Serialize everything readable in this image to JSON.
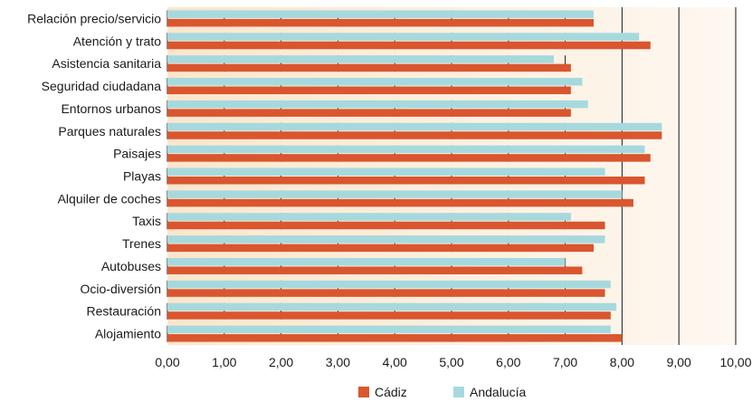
{
  "chart_data": {
    "type": "bar",
    "orientation": "horizontal",
    "categories": [
      "Relación precio/servicio",
      "Atención y trato",
      "Asistencia sanitaria",
      "Seguridad ciudadana",
      "Entornos urbanos",
      "Parques naturales",
      "Paisajes",
      "Playas",
      "Alquiler de coches",
      "Taxis",
      "Trenes",
      "Autobuses",
      "Ocio-diversión",
      "Restauración",
      "Alojamiento"
    ],
    "series": [
      {
        "name": "Andalucía",
        "color": "#a6d9de",
        "values": [
          7.5,
          8.3,
          6.8,
          7.3,
          7.4,
          8.7,
          8.4,
          7.7,
          8.0,
          7.1,
          7.7,
          7.0,
          7.8,
          7.9,
          7.8
        ]
      },
      {
        "name": "Cádiz",
        "color": "#d9562f",
        "values": [
          7.5,
          8.5,
          7.1,
          7.1,
          7.1,
          8.7,
          8.5,
          8.4,
          8.2,
          7.7,
          7.5,
          7.3,
          7.7,
          7.8,
          8.0
        ]
      }
    ],
    "xlim": [
      0,
      10
    ],
    "xticks": [
      "0,00",
      "1,00",
      "2,00",
      "3,00",
      "4,00",
      "5,00",
      "6,00",
      "7,00",
      "8,00",
      "9,00",
      "10,00"
    ],
    "grid": true,
    "legend": {
      "position": "bottom",
      "order": [
        "Cádiz",
        "Andalucía"
      ]
    },
    "background_gradient": [
      "#fbe6cc",
      "#fef8f1"
    ],
    "title": "",
    "xlabel": "",
    "ylabel": ""
  }
}
